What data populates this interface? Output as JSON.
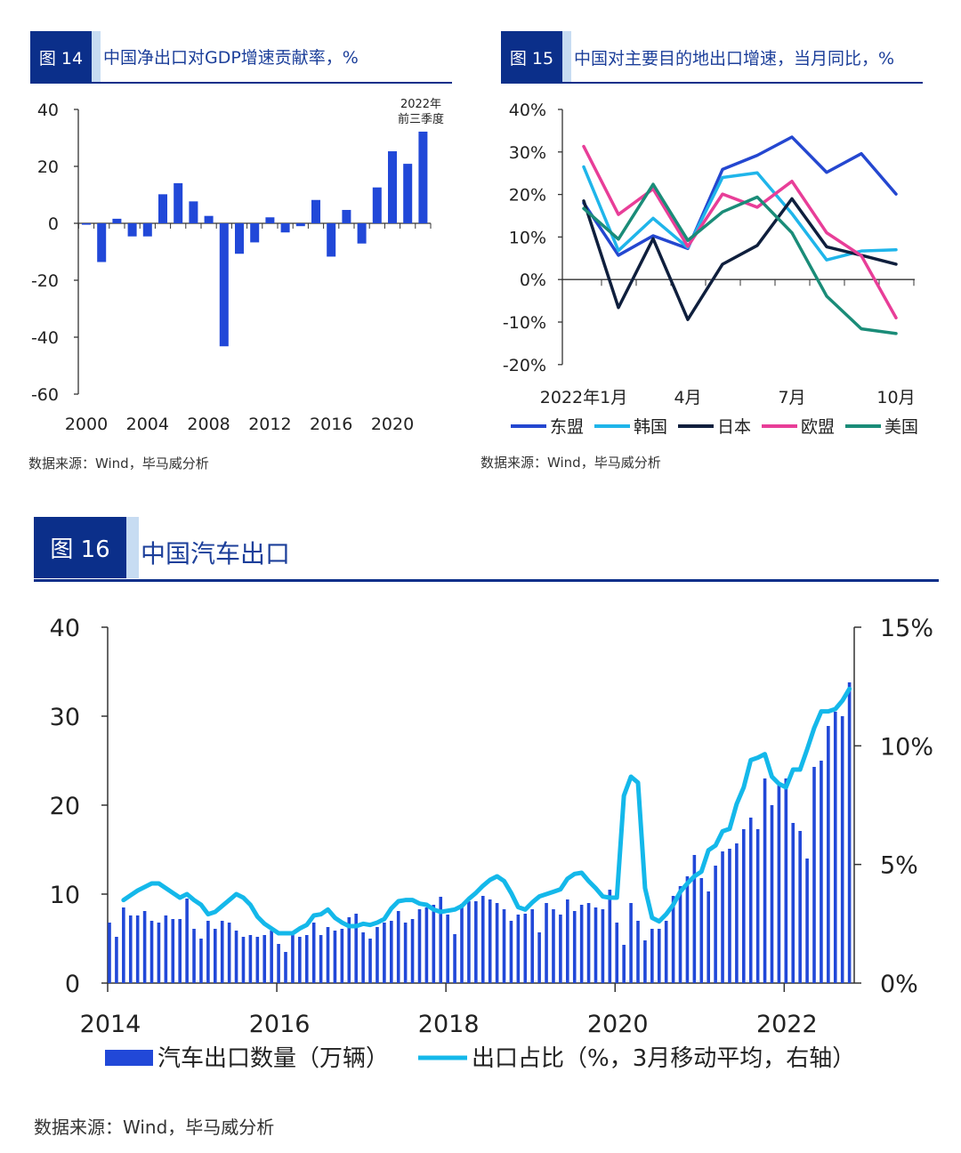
{
  "fig14": {
    "label": "图 14",
    "title": "中国净出口对GDP增速贡献率，%",
    "source": "数据来源：Wind，毕马威分析"
  },
  "fig15": {
    "label": "图 15",
    "title": "中国对主要目的地出口增速，当月同比，%",
    "source": "数据来源：Wind，毕马威分析"
  },
  "fig16": {
    "label": "图 16",
    "title": "中国汽车出口",
    "source": "数据来源：Wind，毕马威分析"
  },
  "colors": {
    "header_dark": "#0b2f8a",
    "bar_blue": "#2148d8",
    "line_cyan": "#14b8ea"
  },
  "chart_data": [
    {
      "type": "bar",
      "categories": [
        "2000",
        "2001",
        "2002",
        "2003",
        "2004",
        "2005",
        "2006",
        "2007",
        "2008",
        "2009",
        "2010",
        "2011",
        "2012",
        "2013",
        "2014",
        "2015",
        "2016",
        "2017",
        "2018",
        "2019",
        "2020",
        "2021",
        "2022"
      ],
      "values": [
        -0.5,
        -13.6,
        1.6,
        -4.6,
        -4.6,
        10.2,
        14.1,
        7.7,
        2.6,
        -43.2,
        -10.7,
        -6.7,
        2.1,
        -3.2,
        -1.0,
        8.2,
        -11.7,
        4.7,
        -7.1,
        12.6,
        25.3,
        20.9,
        32.2
      ],
      "x_tick_labels": [
        "2000",
        "2004",
        "2008",
        "2012",
        "2016",
        "2020"
      ],
      "y_tick_labels": [
        "40",
        "20",
        "0",
        "-20",
        "-40",
        "-60"
      ],
      "ylim": [
        -60,
        40
      ],
      "annotation": [
        "2022年",
        "前三季度"
      ],
      "color": "#2148d8",
      "grid": false
    },
    {
      "type": "line",
      "x": [
        "1月",
        "2月",
        "3月",
        "4月",
        "5月",
        "6月",
        "7月",
        "8月",
        "9月",
        "10月"
      ],
      "x_tick_labels": [
        "2022年1月",
        "4月",
        "7月",
        "10月"
      ],
      "y_tick_labels": [
        "40%",
        "30%",
        "20%",
        "10%",
        "0%",
        "-10%",
        "-20%"
      ],
      "ylim": [
        -20,
        40
      ],
      "grid": false,
      "legend_position": "bottom",
      "series": [
        {
          "name": "东盟",
          "color": "#2447d0",
          "values": [
            18.0,
            5.7,
            10.3,
            7.3,
            25.9,
            29.2,
            33.5,
            25.2,
            29.6,
            20.1
          ]
        },
        {
          "name": "韩国",
          "color": "#1fb5ea",
          "values": [
            26.5,
            6.8,
            14.4,
            7.5,
            24.0,
            25.1,
            15.5,
            4.6,
            6.7,
            7.0
          ]
        },
        {
          "name": "日本",
          "color": "#0f1f3d",
          "values": [
            18.5,
            -6.6,
            9.6,
            -9.4,
            3.6,
            8.0,
            19.0,
            7.7,
            5.7,
            3.6
          ]
        },
        {
          "name": "欧盟",
          "color": "#e83e98",
          "values": [
            31.3,
            15.3,
            21.3,
            7.8,
            20.1,
            17.0,
            23.1,
            11.0,
            5.6,
            -9.0
          ]
        },
        {
          "name": "美国",
          "color": "#1a8c78",
          "values": [
            16.7,
            9.5,
            22.4,
            9.2,
            15.9,
            19.4,
            11.0,
            -3.9,
            -11.6,
            -12.7
          ]
        }
      ]
    },
    {
      "type": "bar+line",
      "x_start": "2014-01",
      "x_end": "2022-10",
      "x_tick_labels": [
        "2014",
        "2016",
        "2018",
        "2020",
        "2022"
      ],
      "y_left_tick_labels": [
        "40",
        "30",
        "20",
        "10",
        "0"
      ],
      "y_right_tick_labels": [
        "15%",
        "10%",
        "5%",
        "0%"
      ],
      "ylim_left": [
        0,
        40
      ],
      "ylim_right": [
        0,
        15
      ],
      "grid": false,
      "legend_position": "bottom",
      "series": [
        {
          "name": "汽车出口数量（万辆）",
          "type": "bar",
          "axis": "left",
          "color": "#2148d8",
          "values": [
            6.8,
            5.2,
            8.5,
            7.6,
            7.6,
            8.1,
            7.0,
            6.8,
            7.6,
            7.2,
            7.2,
            9.5,
            6.1,
            5.0,
            7.0,
            6.1,
            7.0,
            6.8,
            5.9,
            5.2,
            5.4,
            5.2,
            5.4,
            5.9,
            4.4,
            3.5,
            5.4,
            5.2,
            5.4,
            6.8,
            5.4,
            6.3,
            5.9,
            6.1,
            7.4,
            7.8,
            5.7,
            5.0,
            6.3,
            6.8,
            7.0,
            8.1,
            6.8,
            7.2,
            8.3,
            8.5,
            8.8,
            9.7,
            7.7,
            5.5,
            8.9,
            9.2,
            9.2,
            9.8,
            9.4,
            9.0,
            8.3,
            7.0,
            7.7,
            7.8,
            8.3,
            5.7,
            9.0,
            8.3,
            7.7,
            9.4,
            8.1,
            8.8,
            9.0,
            8.5,
            8.3,
            10.5,
            6.8,
            4.3,
            9.0,
            7.0,
            4.8,
            6.1,
            6.1,
            7.0,
            9.8,
            10.9,
            12.0,
            14.4,
            11.8,
            10.3,
            13.2,
            14.8,
            15.1,
            15.7,
            17.3,
            18.6,
            17.3,
            23.0,
            20.0,
            22.2,
            23.0,
            18.0,
            17.1,
            14.0,
            24.3,
            25.0,
            28.9,
            30.5,
            30.0,
            33.8
          ]
        },
        {
          "name": "出口占比（%，3月移动平均，右轴）",
          "type": "line",
          "axis": "right",
          "color": "#14b8ea",
          "values": [
            null,
            null,
            3.5,
            3.7,
            3.9,
            4.05,
            4.2,
            4.2,
            4.0,
            3.8,
            3.6,
            3.75,
            3.5,
            3.3,
            2.9,
            3.0,
            3.25,
            3.5,
            3.75,
            3.6,
            3.3,
            2.8,
            2.5,
            2.3,
            2.1,
            2.1,
            2.1,
            2.3,
            2.45,
            2.85,
            2.9,
            3.1,
            2.75,
            2.55,
            2.4,
            2.4,
            2.5,
            2.45,
            2.55,
            2.7,
            3.15,
            3.45,
            3.5,
            3.5,
            3.35,
            3.3,
            3.1,
            3.0,
            3.05,
            3.1,
            3.25,
            3.55,
            3.8,
            4.1,
            4.35,
            4.5,
            4.3,
            3.8,
            3.2,
            3.1,
            3.4,
            3.65,
            3.75,
            3.85,
            3.95,
            4.4,
            4.6,
            4.65,
            4.3,
            4.0,
            3.65,
            3.6,
            3.6,
            7.9,
            8.7,
            8.45,
            4.0,
            2.75,
            2.6,
            2.9,
            3.3,
            3.85,
            4.2,
            4.5,
            4.7,
            5.6,
            5.8,
            6.4,
            6.5,
            7.55,
            8.25,
            9.4,
            9.5,
            9.65,
            8.7,
            8.4,
            8.25,
            9.0,
            9.0,
            9.85,
            10.75,
            11.45,
            11.45,
            11.55,
            11.9,
            12.4
          ]
        }
      ]
    }
  ]
}
